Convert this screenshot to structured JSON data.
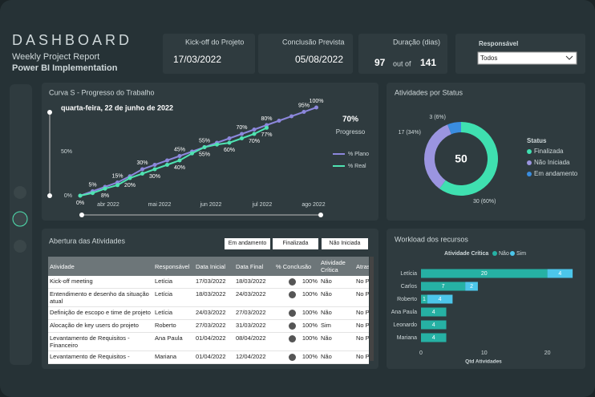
{
  "header": {
    "title": "DASHBOARD",
    "subtitle": "Weekly Project Report",
    "project": "Power BI Implementation"
  },
  "kpis": {
    "kickoff_label": "Kick-off do Projeto",
    "kickoff_value": "17/03/2022",
    "end_label": "Conclusão Prevista",
    "end_value": "05/08/2022",
    "duration_label": "Duração (dias)",
    "duration_value": 97,
    "duration_sep": "out of",
    "duration_total": 141,
    "filter_label": "Responsável",
    "filter_value": "Todos"
  },
  "chart_data": [
    {
      "type": "line",
      "title": "Curva S - Progresso do Trabalho",
      "date_label": "quarta-feira, 22 de junho de 2022",
      "progress_value": "70%",
      "progress_label": "Progresso",
      "categories": [
        null,
        null,
        null,
        null,
        null,
        null,
        null,
        null,
        null,
        null,
        null,
        null,
        null,
        null,
        null,
        null,
        null,
        null,
        null,
        null
      ],
      "x_labels": [
        "abr 2022",
        "mai 2022",
        "jun 2022",
        "jul 2022",
        "ago 2022"
      ],
      "ylim": [
        0,
        100
      ],
      "yticks": [
        {
          "value": 0,
          "label": "0%"
        },
        {
          "value": 50,
          "label": "50%"
        }
      ],
      "series": [
        {
          "name": "% Plano",
          "color": "#8c87dc",
          "values": [
            0,
            5,
            10,
            15,
            22,
            30,
            35,
            40,
            45,
            50,
            55,
            60,
            65,
            70,
            75,
            80,
            85,
            90,
            95,
            100
          ],
          "value_labels": [
            null,
            "5%",
            null,
            "15%",
            null,
            "30%",
            null,
            null,
            "45%",
            null,
            "55%",
            null,
            null,
            "70%",
            null,
            "80%",
            null,
            null,
            "95%",
            "100%"
          ]
        },
        {
          "name": "% Real",
          "color": "#4fe3b2",
          "values": [
            0,
            3,
            8,
            12,
            20,
            25,
            30,
            35,
            40,
            48,
            55,
            58,
            60,
            65,
            70,
            77,
            null,
            null,
            null,
            null
          ],
          "value_labels": [
            "0%",
            null,
            "8%",
            null,
            "20%",
            null,
            "30%",
            null,
            "40%",
            null,
            "55%",
            null,
            "60%",
            null,
            "70%",
            "77%",
            null,
            null,
            null,
            null
          ]
        }
      ]
    },
    {
      "type": "pie",
      "title": "Atividades por Status",
      "center_label": 50,
      "legend_title": "Status",
      "categories": [
        "Finalizada",
        "Não Iniciada",
        "Em andamento"
      ],
      "values": [
        30,
        17,
        3
      ],
      "value_labels": [
        "30 (60%)",
        "17 (34%)",
        "3 (6%)"
      ],
      "colors": [
        "#3fe0b0",
        "#9b95e0",
        "#3a8de0"
      ]
    },
    {
      "type": "hbar-stacked",
      "title": "Workload dos recursos",
      "legend_title": "Atividade Crítica",
      "x_label": "Qtd Atividades",
      "categories": [
        "Letícia",
        "Carlos",
        "Roberto",
        "Ana Paula",
        "Leonardo",
        "Mariana"
      ],
      "xlim": [
        0,
        25
      ],
      "xticks": [
        0,
        10,
        20
      ],
      "series": [
        {
          "name": "Não",
          "color": "#26b1a4",
          "values": [
            20,
            7,
            1,
            4,
            4,
            4
          ]
        },
        {
          "name": "Sim",
          "color": "#4cc6ea",
          "values": [
            4,
            2,
            4,
            null,
            null,
            null
          ]
        }
      ]
    }
  ],
  "table": {
    "title": "Abertura das Atividades",
    "filters": [
      "Em andamento",
      "Finalizada",
      "Não Iniciada"
    ],
    "columns": [
      "Atividade",
      "Responsável",
      "Data Inicial",
      "Data Final",
      "% Conclusão",
      "Atividade Crítica",
      "Atraso"
    ],
    "rows": [
      [
        "Kick-off meeting",
        "Letícia",
        "17/03/2022",
        "18/03/2022",
        "100%",
        "Não",
        "No Prazo"
      ],
      [
        "Entendimento e desenho da situação atual",
        "Letícia",
        "18/03/2022",
        "24/03/2022",
        "100%",
        "Não",
        "No Prazo"
      ],
      [
        "Definição de escopo e time de projeto",
        "Letícia",
        "24/03/2022",
        "27/03/2022",
        "100%",
        "Não",
        "No Prazo"
      ],
      [
        "Alocação de key users do projeto",
        "Roberto",
        "27/03/2022",
        "31/03/2022",
        "100%",
        "Sim",
        "No Prazo"
      ],
      [
        "Levantamento de Requisitos - Financeiro",
        "Ana Paula",
        "01/04/2022",
        "08/04/2022",
        "100%",
        "Não",
        "No Prazo"
      ],
      [
        "Levantamento de Requisitos -",
        "Mariana",
        "01/04/2022",
        "12/04/2022",
        "100%",
        "Não",
        "No Prazo"
      ]
    ]
  }
}
